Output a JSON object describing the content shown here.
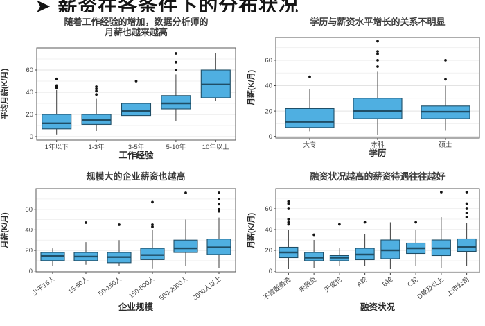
{
  "page": {
    "heading": "➤ 薪资在各条件下的分布状况"
  },
  "colors": {
    "box_fill": "#4fafe1",
    "box_stroke": "#1f4e66",
    "median": "#1f4e66",
    "whisker": "#3c3c3c",
    "outlier": "#141414",
    "panel_border": "#5a5a5a",
    "grid_major": "#e3e3e3",
    "grid_minor": "#f1f1f1",
    "title_text": "#3d3d3d",
    "axis_text": "#3f3f3f",
    "axis_label_text": "#2b2b2b"
  },
  "chart_data": [
    {
      "type": "box",
      "title_lines": [
        "随着工作经验的增加，数据分析师的",
        "月薪也越来越高"
      ],
      "xlabel": "工作经验",
      "ylabel": "平均月薪(K/月)",
      "yticks": [
        0,
        20,
        40,
        60
      ],
      "ylim": [
        -4,
        80
      ],
      "grid": true,
      "categories": [
        "1年以下",
        "1-3年",
        "3-5年",
        "5-10年",
        "10年以上"
      ],
      "boxes": [
        {
          "low": 2,
          "q1": 7,
          "median": 12,
          "q3": 20,
          "high": 42,
          "outliers": [
            44,
            45,
            46,
            52
          ]
        },
        {
          "low": 5,
          "q1": 11,
          "median": 15,
          "q3": 20,
          "high": 34,
          "outliers": [
            38,
            41,
            43,
            45
          ]
        },
        {
          "low": 8,
          "q1": 19,
          "median": 23,
          "q3": 30,
          "high": 46,
          "outliers": [
            50
          ]
        },
        {
          "low": 14,
          "q1": 25,
          "median": 30,
          "q3": 37,
          "high": 56,
          "outliers": [
            60,
            67,
            75
          ]
        },
        {
          "low": 32,
          "q1": 35,
          "median": 47,
          "q3": 60,
          "high": 75,
          "outliers": []
        }
      ]
    },
    {
      "type": "box",
      "title_lines": [
        "学历与薪资水平增长的关系不明显"
      ],
      "xlabel": "学历",
      "ylabel": "月薪(K/月)",
      "yticks": [
        0,
        20,
        40,
        60
      ],
      "ylim": [
        -4,
        80
      ],
      "grid": true,
      "categories": [
        "大专",
        "本科",
        "硕士"
      ],
      "boxes": [
        {
          "low": 4,
          "q1": 7,
          "median": 11.5,
          "q3": 22,
          "high": 37,
          "outliers": [
            47
          ]
        },
        {
          "low": 1,
          "q1": 14,
          "median": 20,
          "q3": 30,
          "high": 51,
          "outliers": [
            55,
            60,
            65,
            67,
            75
          ]
        },
        {
          "low": 4.5,
          "q1": 14,
          "median": 19.5,
          "q3": 24,
          "high": 40,
          "outliers": [
            45,
            60
          ]
        }
      ]
    },
    {
      "type": "box",
      "title_lines": [
        "规模大的企业薪资也越高"
      ],
      "xlabel": "企业规模",
      "ylabel": "月薪(K/月)",
      "yticks": [
        0,
        20,
        40,
        60
      ],
      "ylim": [
        -4,
        80
      ],
      "grid": true,
      "categories": [
        "少于15人",
        "15-50人",
        "50-150人",
        "150-500人",
        "500-2000人",
        "2000人以上"
      ],
      "boxes": [
        {
          "low": 5,
          "q1": 10,
          "median": 14.5,
          "q3": 18,
          "high": 22,
          "outliers": []
        },
        {
          "low": 6,
          "q1": 10,
          "median": 14,
          "q3": 18,
          "high": 28,
          "outliers": [
            47
          ]
        },
        {
          "low": 5,
          "q1": 8,
          "median": 13.5,
          "q3": 18,
          "high": 30,
          "outliers": [
            45
          ]
        },
        {
          "low": 2,
          "q1": 11,
          "median": 15.5,
          "q3": 22,
          "high": 40,
          "outliers": [
            43,
            45,
            67
          ]
        },
        {
          "low": 5,
          "q1": 18,
          "median": 22,
          "q3": 30,
          "high": 50,
          "outliers": [
            76
          ]
        },
        {
          "low": 3,
          "q1": 16,
          "median": 23,
          "q3": 31,
          "high": 52,
          "outliers": [
            58,
            60,
            65,
            70,
            76
          ]
        }
      ]
    },
    {
      "type": "box",
      "title_lines": [
        "融资状况越高的薪资待遇往往越好"
      ],
      "xlabel": "融资状况",
      "ylabel": "月薪(K/月)",
      "yticks": [
        0,
        20,
        40,
        60
      ],
      "ylim": [
        -4,
        80
      ],
      "grid": true,
      "categories": [
        "不需要融资",
        "未融资",
        "天使轮",
        "A轮",
        "B轮",
        "C轮",
        "D轮及以上",
        "上市公司"
      ],
      "boxes": [
        {
          "low": 2,
          "q1": 13,
          "median": 18,
          "q3": 23,
          "high": 40,
          "outliers": [
            45,
            47,
            50,
            60,
            65,
            67
          ]
        },
        {
          "low": 3,
          "q1": 10,
          "median": 13,
          "q3": 18,
          "high": 30,
          "outliers": [
            35
          ]
        },
        {
          "low": 5,
          "q1": 10,
          "median": 13,
          "q3": 15,
          "high": 22,
          "outliers": [
            45
          ]
        },
        {
          "low": 5,
          "q1": 11,
          "median": 16,
          "q3": 22,
          "high": 36,
          "outliers": [
            47
          ]
        },
        {
          "low": 2,
          "q1": 12,
          "median": 20,
          "q3": 30,
          "high": 47,
          "outliers": []
        },
        {
          "low": 5,
          "q1": 17,
          "median": 22,
          "q3": 27,
          "high": 40,
          "outliers": [
            47
          ]
        },
        {
          "low": 3,
          "q1": 15,
          "median": 22,
          "q3": 30,
          "high": 52,
          "outliers": [
            76
          ]
        },
        {
          "low": 5,
          "q1": 19,
          "median": 23.5,
          "q3": 31,
          "high": 46,
          "outliers": [
            52,
            56,
            60,
            65,
            76
          ]
        }
      ]
    }
  ]
}
